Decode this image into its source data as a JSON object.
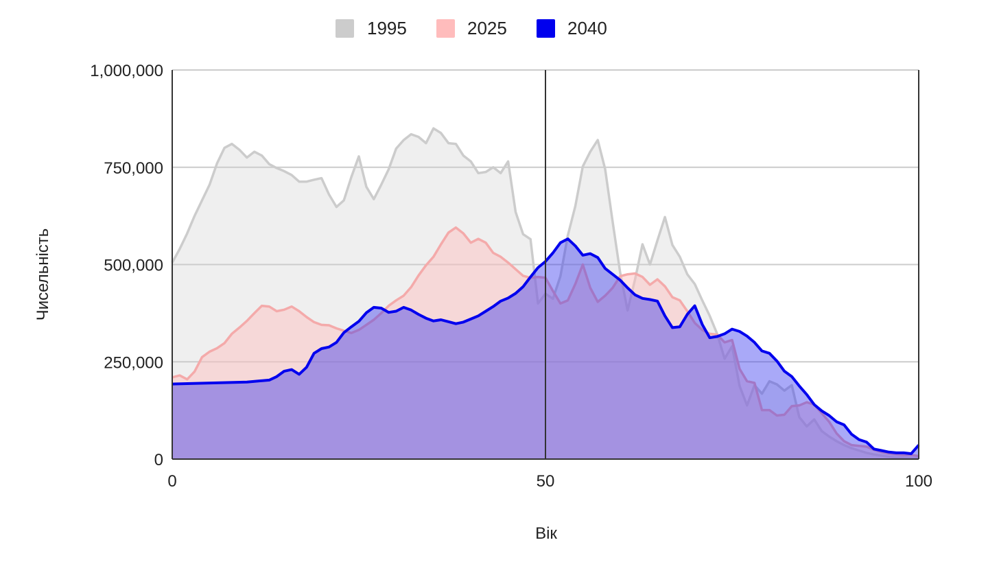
{
  "colors": {
    "s1995_line": "#cccccc",
    "s1995_fill": "#cccccc",
    "s2025_line": "#f4aaaa",
    "s2025_fill": "#ffbcbc",
    "s2040_line": "#0000ee",
    "s2040_fill": "#3333ee",
    "grid": "#cccccc",
    "axis": "#333333"
  },
  "chart_data": {
    "type": "area",
    "xlabel": "Вік",
    "ylabel": "Чисельність",
    "xlim": [
      0,
      100
    ],
    "ylim": [
      0,
      1000000
    ],
    "x_ticks": [
      0,
      50,
      100
    ],
    "x_tick_labels": [
      "0",
      "50",
      "100"
    ],
    "y_ticks": [
      0,
      250000,
      500000,
      750000,
      1000000
    ],
    "y_tick_labels": [
      "0",
      "250,000",
      "500,000",
      "750,000",
      "1,000,000"
    ],
    "grid": true,
    "legend_position": "top",
    "vertical_marker_x": 50,
    "series": [
      {
        "name": "1995",
        "color_key": "s1995",
        "points": [
          [
            0,
            505000
          ],
          [
            1,
            540000
          ],
          [
            2,
            580000
          ],
          [
            3,
            625000
          ],
          [
            4,
            665000
          ],
          [
            5,
            705000
          ],
          [
            6,
            760000
          ],
          [
            7,
            800000
          ],
          [
            8,
            810000
          ],
          [
            9,
            795000
          ],
          [
            10,
            775000
          ],
          [
            11,
            790000
          ],
          [
            12,
            780000
          ],
          [
            13,
            758000
          ],
          [
            14,
            748000
          ],
          [
            15,
            740000
          ],
          [
            16,
            730000
          ],
          [
            17,
            713000
          ],
          [
            18,
            713000
          ],
          [
            19,
            718000
          ],
          [
            20,
            722000
          ],
          [
            21,
            680000
          ],
          [
            22,
            648000
          ],
          [
            23,
            665000
          ],
          [
            24,
            725000
          ],
          [
            25,
            778000
          ],
          [
            26,
            700000
          ],
          [
            27,
            668000
          ],
          [
            28,
            705000
          ],
          [
            29,
            745000
          ],
          [
            30,
            798000
          ],
          [
            31,
            820000
          ],
          [
            32,
            835000
          ],
          [
            33,
            828000
          ],
          [
            34,
            812000
          ],
          [
            35,
            850000
          ],
          [
            36,
            838000
          ],
          [
            37,
            812000
          ],
          [
            38,
            810000
          ],
          [
            39,
            780000
          ],
          [
            40,
            765000
          ],
          [
            41,
            735000
          ],
          [
            42,
            738000
          ],
          [
            43,
            750000
          ],
          [
            44,
            735000
          ],
          [
            45,
            765000
          ],
          [
            46,
            635000
          ],
          [
            47,
            578000
          ],
          [
            48,
            565000
          ],
          [
            49,
            400000
          ],
          [
            50,
            425000
          ],
          [
            51,
            412000
          ],
          [
            52,
            470000
          ],
          [
            53,
            575000
          ],
          [
            54,
            650000
          ],
          [
            55,
            752000
          ],
          [
            56,
            790000
          ],
          [
            57,
            820000
          ],
          [
            58,
            745000
          ],
          [
            59,
            610000
          ],
          [
            60,
            480000
          ],
          [
            61,
            382000
          ],
          [
            62,
            462000
          ],
          [
            63,
            552000
          ],
          [
            64,
            500000
          ],
          [
            65,
            562000
          ],
          [
            66,
            622000
          ],
          [
            67,
            550000
          ],
          [
            68,
            520000
          ],
          [
            69,
            475000
          ],
          [
            70,
            450000
          ],
          [
            71,
            408000
          ],
          [
            72,
            368000
          ],
          [
            73,
            322000
          ],
          [
            74,
            258000
          ],
          [
            75,
            290000
          ],
          [
            76,
            188000
          ],
          [
            77,
            138000
          ],
          [
            78,
            190000
          ],
          [
            79,
            168000
          ],
          [
            80,
            200000
          ],
          [
            81,
            192000
          ],
          [
            82,
            176000
          ],
          [
            83,
            190000
          ],
          [
            84,
            108000
          ],
          [
            85,
            84000
          ],
          [
            86,
            102000
          ],
          [
            87,
            72000
          ],
          [
            88,
            58000
          ],
          [
            89,
            46000
          ],
          [
            90,
            36000
          ],
          [
            91,
            28000
          ],
          [
            92,
            22000
          ],
          [
            93,
            16000
          ],
          [
            94,
            12000
          ],
          [
            95,
            9000
          ],
          [
            96,
            6000
          ],
          [
            97,
            4000
          ],
          [
            98,
            3000
          ],
          [
            99,
            2000
          ],
          [
            100,
            2000
          ]
        ]
      },
      {
        "name": "2025",
        "color_key": "s2025",
        "points": [
          [
            0,
            210000
          ],
          [
            1,
            215000
          ],
          [
            2,
            205000
          ],
          [
            3,
            225000
          ],
          [
            4,
            262000
          ],
          [
            5,
            276000
          ],
          [
            6,
            285000
          ],
          [
            7,
            298000
          ],
          [
            8,
            322000
          ],
          [
            9,
            338000
          ],
          [
            10,
            355000
          ],
          [
            11,
            375000
          ],
          [
            12,
            394000
          ],
          [
            13,
            392000
          ],
          [
            14,
            380000
          ],
          [
            15,
            384000
          ],
          [
            16,
            392000
          ],
          [
            17,
            380000
          ],
          [
            18,
            365000
          ],
          [
            19,
            352000
          ],
          [
            20,
            345000
          ],
          [
            21,
            344000
          ],
          [
            22,
            336000
          ],
          [
            23,
            330000
          ],
          [
            24,
            324000
          ],
          [
            25,
            332000
          ],
          [
            26,
            345000
          ],
          [
            27,
            358000
          ],
          [
            28,
            375000
          ],
          [
            29,
            394000
          ],
          [
            30,
            408000
          ],
          [
            31,
            420000
          ],
          [
            32,
            442000
          ],
          [
            33,
            472000
          ],
          [
            34,
            498000
          ],
          [
            35,
            520000
          ],
          [
            36,
            552000
          ],
          [
            37,
            582000
          ],
          [
            38,
            595000
          ],
          [
            39,
            580000
          ],
          [
            40,
            556000
          ],
          [
            41,
            566000
          ],
          [
            42,
            556000
          ],
          [
            43,
            530000
          ],
          [
            44,
            520000
          ],
          [
            45,
            505000
          ],
          [
            46,
            488000
          ],
          [
            47,
            471000
          ],
          [
            48,
            466000
          ],
          [
            49,
            468000
          ],
          [
            50,
            466000
          ],
          [
            51,
            432000
          ],
          [
            52,
            400000
          ],
          [
            53,
            408000
          ],
          [
            54,
            450000
          ],
          [
            55,
            500000
          ],
          [
            56,
            440000
          ],
          [
            57,
            404000
          ],
          [
            58,
            420000
          ],
          [
            59,
            440000
          ],
          [
            60,
            470000
          ],
          [
            61,
            475000
          ],
          [
            62,
            477000
          ],
          [
            63,
            468000
          ],
          [
            64,
            448000
          ],
          [
            65,
            462000
          ],
          [
            66,
            444000
          ],
          [
            67,
            416000
          ],
          [
            68,
            408000
          ],
          [
            69,
            380000
          ],
          [
            70,
            350000
          ],
          [
            71,
            332000
          ],
          [
            72,
            322000
          ],
          [
            73,
            320000
          ],
          [
            74,
            300000
          ],
          [
            75,
            306000
          ],
          [
            76,
            232000
          ],
          [
            77,
            200000
          ],
          [
            78,
            196000
          ],
          [
            79,
            126000
          ],
          [
            80,
            126000
          ],
          [
            81,
            112000
          ],
          [
            82,
            114000
          ],
          [
            83,
            136000
          ],
          [
            84,
            138000
          ],
          [
            85,
            146000
          ],
          [
            86,
            140000
          ],
          [
            87,
            118000
          ],
          [
            88,
            96000
          ],
          [
            89,
            66000
          ],
          [
            90,
            46000
          ],
          [
            91,
            36000
          ],
          [
            92,
            34000
          ],
          [
            93,
            32000
          ],
          [
            94,
            24000
          ],
          [
            95,
            18000
          ],
          [
            96,
            14000
          ],
          [
            97,
            12000
          ],
          [
            98,
            10000
          ],
          [
            99,
            10000
          ],
          [
            100,
            8000
          ]
        ]
      },
      {
        "name": "2040",
        "color_key": "s2040",
        "points": [
          [
            0,
            193000
          ],
          [
            10,
            198000
          ],
          [
            13,
            203000
          ],
          [
            14,
            212000
          ],
          [
            15,
            226000
          ],
          [
            16,
            230000
          ],
          [
            17,
            218000
          ],
          [
            18,
            236000
          ],
          [
            19,
            272000
          ],
          [
            20,
            284000
          ],
          [
            21,
            288000
          ],
          [
            22,
            300000
          ],
          [
            23,
            325000
          ],
          [
            24,
            340000
          ],
          [
            25,
            354000
          ],
          [
            26,
            376000
          ],
          [
            27,
            390000
          ],
          [
            28,
            388000
          ],
          [
            29,
            377000
          ],
          [
            30,
            380000
          ],
          [
            31,
            390000
          ],
          [
            32,
            383000
          ],
          [
            33,
            372000
          ],
          [
            34,
            362000
          ],
          [
            35,
            355000
          ],
          [
            36,
            358000
          ],
          [
            37,
            353000
          ],
          [
            38,
            348000
          ],
          [
            39,
            352000
          ],
          [
            40,
            360000
          ],
          [
            41,
            368000
          ],
          [
            42,
            380000
          ],
          [
            43,
            392000
          ],
          [
            44,
            406000
          ],
          [
            45,
            414000
          ],
          [
            46,
            426000
          ],
          [
            47,
            443000
          ],
          [
            48,
            468000
          ],
          [
            49,
            492000
          ],
          [
            50,
            508000
          ],
          [
            51,
            530000
          ],
          [
            52,
            556000
          ],
          [
            53,
            566000
          ],
          [
            54,
            548000
          ],
          [
            55,
            524000
          ],
          [
            56,
            528000
          ],
          [
            57,
            518000
          ],
          [
            58,
            490000
          ],
          [
            59,
            475000
          ],
          [
            60,
            460000
          ],
          [
            61,
            440000
          ],
          [
            62,
            422000
          ],
          [
            63,
            413000
          ],
          [
            64,
            410000
          ],
          [
            65,
            406000
          ],
          [
            66,
            368000
          ],
          [
            67,
            338000
          ],
          [
            68,
            340000
          ],
          [
            69,
            372000
          ],
          [
            70,
            394000
          ],
          [
            71,
            346000
          ],
          [
            72,
            312000
          ],
          [
            73,
            315000
          ],
          [
            74,
            322000
          ],
          [
            75,
            334000
          ],
          [
            76,
            328000
          ],
          [
            77,
            316000
          ],
          [
            78,
            300000
          ],
          [
            79,
            278000
          ],
          [
            80,
            272000
          ],
          [
            81,
            252000
          ],
          [
            82,
            226000
          ],
          [
            83,
            212000
          ],
          [
            84,
            188000
          ],
          [
            85,
            166000
          ],
          [
            86,
            140000
          ],
          [
            87,
            124000
          ],
          [
            88,
            112000
          ],
          [
            89,
            96000
          ],
          [
            90,
            88000
          ],
          [
            91,
            64000
          ],
          [
            92,
            50000
          ],
          [
            93,
            44000
          ],
          [
            94,
            26000
          ],
          [
            95,
            22000
          ],
          [
            96,
            18000
          ],
          [
            97,
            16000
          ],
          [
            98,
            16000
          ],
          [
            99,
            14000
          ],
          [
            100,
            36000
          ]
        ]
      }
    ]
  }
}
